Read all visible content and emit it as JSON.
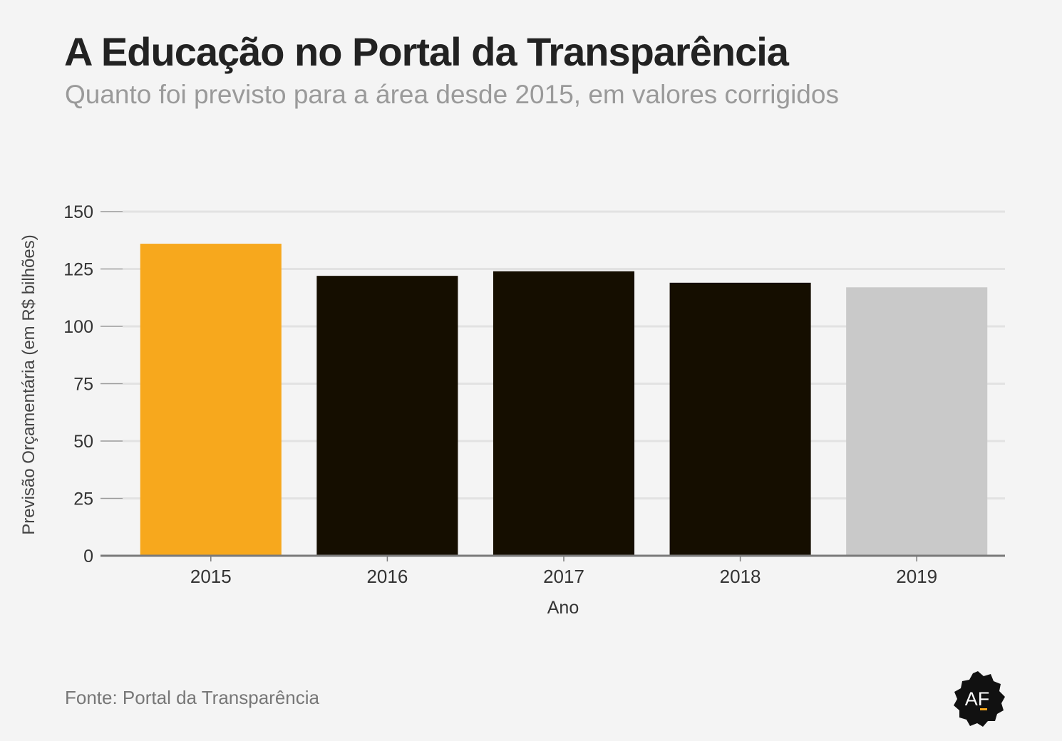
{
  "title": "A Educação no Portal da Transparência",
  "subtitle": "Quanto foi previsto para a área desde 2015, em valores corrigidos",
  "source": "Fonte: Portal da Transparência",
  "logo_text": "AF",
  "colors": {
    "background": "#f4f4f4",
    "highlight": "#f7a81d",
    "bar": "#150e00",
    "bar_last": "#c9c9c9",
    "grid": "#e2e2e2",
    "axis": "#7a7a7a"
  },
  "chart_data": {
    "type": "bar",
    "categories": [
      "2015",
      "2016",
      "2017",
      "2018",
      "2019"
    ],
    "values": [
      136,
      122,
      124,
      119,
      117
    ],
    "bar_colors": [
      "#f7a81d",
      "#150e00",
      "#150e00",
      "#150e00",
      "#c9c9c9"
    ],
    "xlabel": "Ano",
    "ylabel": "Previsão Orçamentária (em R$ bilhões)",
    "ylim": [
      0,
      150
    ],
    "yticks": [
      0,
      25,
      50,
      75,
      100,
      125,
      150
    ],
    "grid": true
  }
}
